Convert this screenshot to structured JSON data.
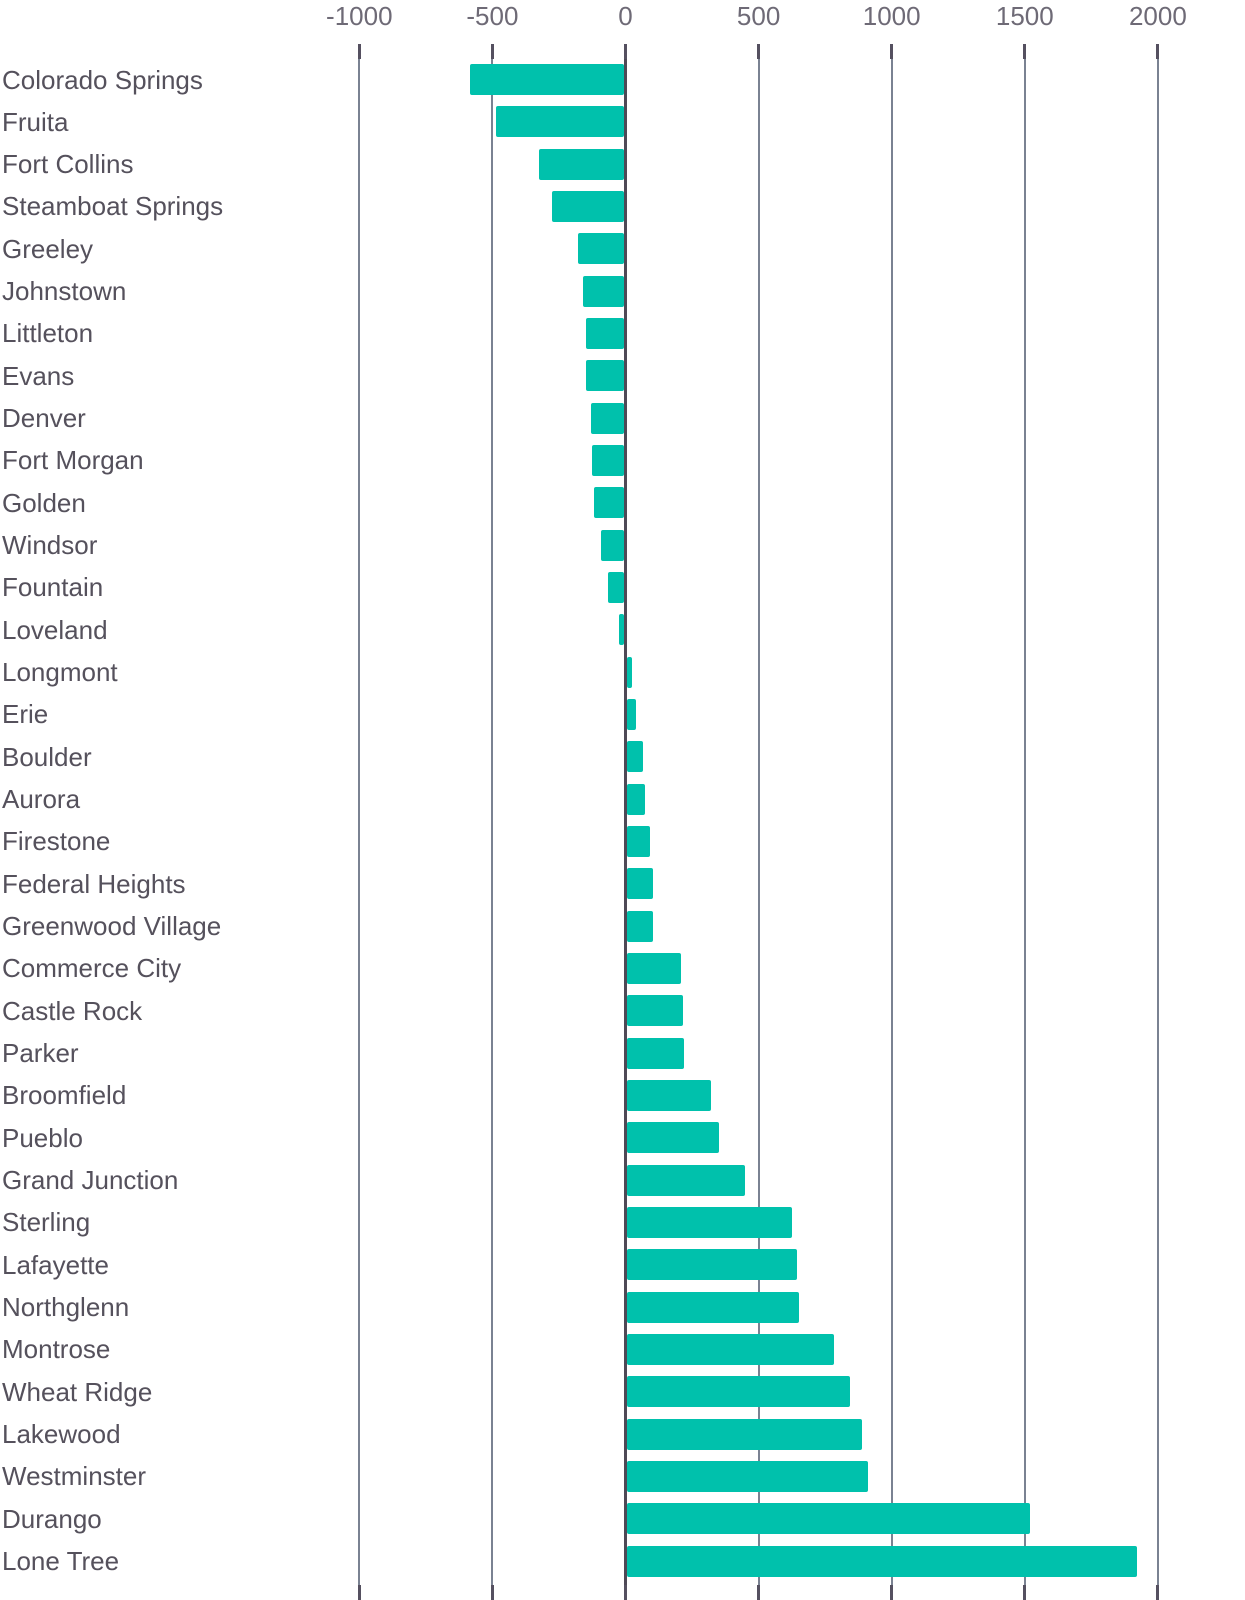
{
  "chart_data": {
    "type": "bar",
    "orientation": "horizontal",
    "title": "",
    "xlabel": "",
    "ylabel": "",
    "grid": true,
    "legend": false,
    "axis_position": "top",
    "xlim": [
      -1250,
      2330
    ],
    "x_ticks": [
      -1000,
      -500,
      0,
      500,
      1000,
      1500,
      2000
    ],
    "x_tick_labels": [
      "-1000",
      "-500",
      "0",
      "500",
      "1000",
      "1500",
      "2000"
    ],
    "categories": [
      "Colorado Springs",
      "Fruita",
      "Fort Collins",
      "Steamboat Springs",
      "Greeley",
      "Johnstown",
      "Littleton",
      "Evans",
      "Denver",
      "Fort Morgan",
      "Golden",
      "Windsor",
      "Fountain",
      "Loveland",
      "Longmont",
      "Erie",
      "Boulder",
      "Aurora",
      "Firestone",
      "Federal Heights",
      "Greenwood Village",
      "Commerce City",
      "Castle Rock",
      "Parker",
      "Broomfield",
      "Pueblo",
      "Grand Junction",
      "Sterling",
      "Lafayette",
      "Northglenn",
      "Montrose",
      "Wheat Ridge",
      "Lakewood",
      "Westminster",
      "Durango",
      "Lone Tree"
    ],
    "values": [
      -585,
      -485,
      -325,
      -275,
      -177,
      -158,
      -150,
      -148,
      -130,
      -125,
      -117,
      -93,
      -65,
      -23,
      25,
      40,
      67,
      74,
      92,
      104,
      102,
      210,
      215,
      220,
      320,
      350,
      450,
      625,
      645,
      650,
      785,
      845,
      890,
      910,
      1520,
      1920
    ],
    "colors": {
      "bar": "#00c1ac",
      "category_label": "#55515c",
      "axis_label": "#6e6a76",
      "gridline": "#7a8292",
      "zero_line": "#4e4956",
      "background": "#ffffff"
    }
  }
}
